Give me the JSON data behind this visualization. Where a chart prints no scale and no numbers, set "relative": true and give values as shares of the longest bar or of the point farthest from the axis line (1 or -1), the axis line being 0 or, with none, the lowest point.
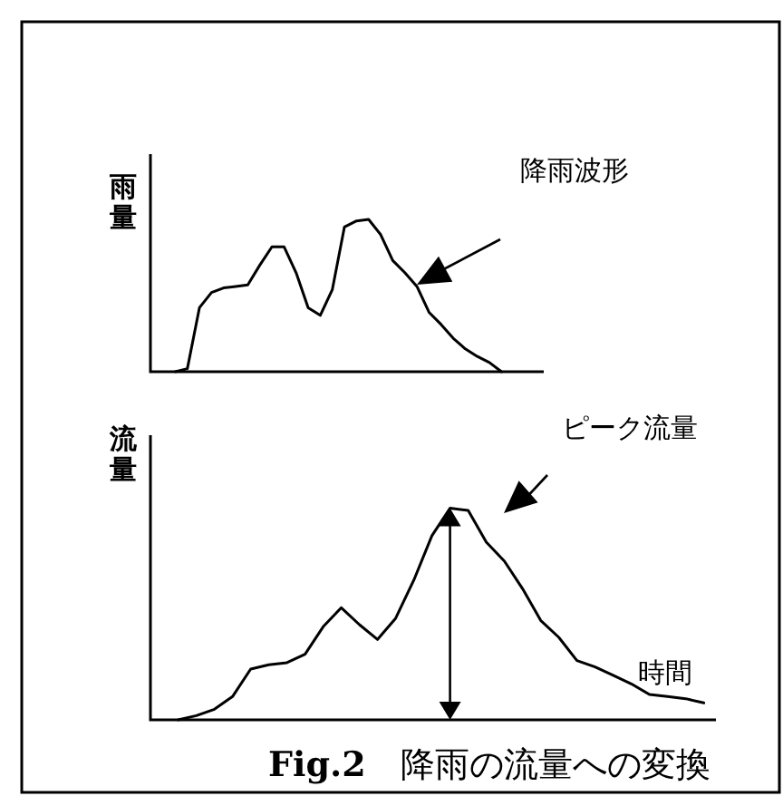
{
  "chart_data": [
    {
      "type": "line",
      "relative": true,
      "ylabel": "雨量",
      "annotations": [
        "降雨波形"
      ],
      "categories": [
        null,
        null,
        null,
        null,
        null,
        null,
        null,
        null,
        null,
        null,
        null,
        null,
        null,
        null,
        null,
        null,
        null,
        null,
        null,
        null,
        null,
        null,
        null,
        null,
        null,
        null,
        null,
        null
      ],
      "series": [
        {
          "color": "#000000",
          "values": [
            0,
            0.02,
            0.42,
            0.52,
            0.55,
            0.56,
            0.57,
            0.7,
            0.82,
            0.82,
            0.65,
            0.42,
            0.37,
            0.54,
            0.95,
            0.99,
            1.0,
            0.9,
            0.73,
            0.65,
            0.56,
            0.39,
            0.31,
            0.22,
            0.15,
            0.1,
            0.06,
            0
          ]
        }
      ]
    },
    {
      "type": "line",
      "relative": true,
      "title": "**Fig.2**　降雨の流量への変換",
      "ylabel": "流量",
      "xlabel": "時間",
      "annotations": [
        "ピーク流量"
      ],
      "categories": [
        null,
        null,
        null,
        null,
        null,
        null,
        null,
        null,
        null,
        null,
        null,
        null,
        null,
        null,
        null,
        null,
        null,
        null,
        null,
        null,
        null,
        null,
        null,
        null,
        null,
        null,
        null,
        null,
        null,
        null
      ],
      "series": [
        {
          "color": "#000000",
          "values": [
            0,
            0.02,
            0.05,
            0.11,
            0.24,
            0.26,
            0.27,
            0.31,
            0.44,
            0.53,
            0.45,
            0.38,
            0.48,
            0.66,
            0.87,
            1.0,
            0.99,
            0.84,
            0.75,
            0.62,
            0.47,
            0.39,
            0.28,
            0.25,
            0.21,
            0.17,
            0.12,
            0.11,
            0.1,
            0.08
          ]
        }
      ]
    }
  ]
}
